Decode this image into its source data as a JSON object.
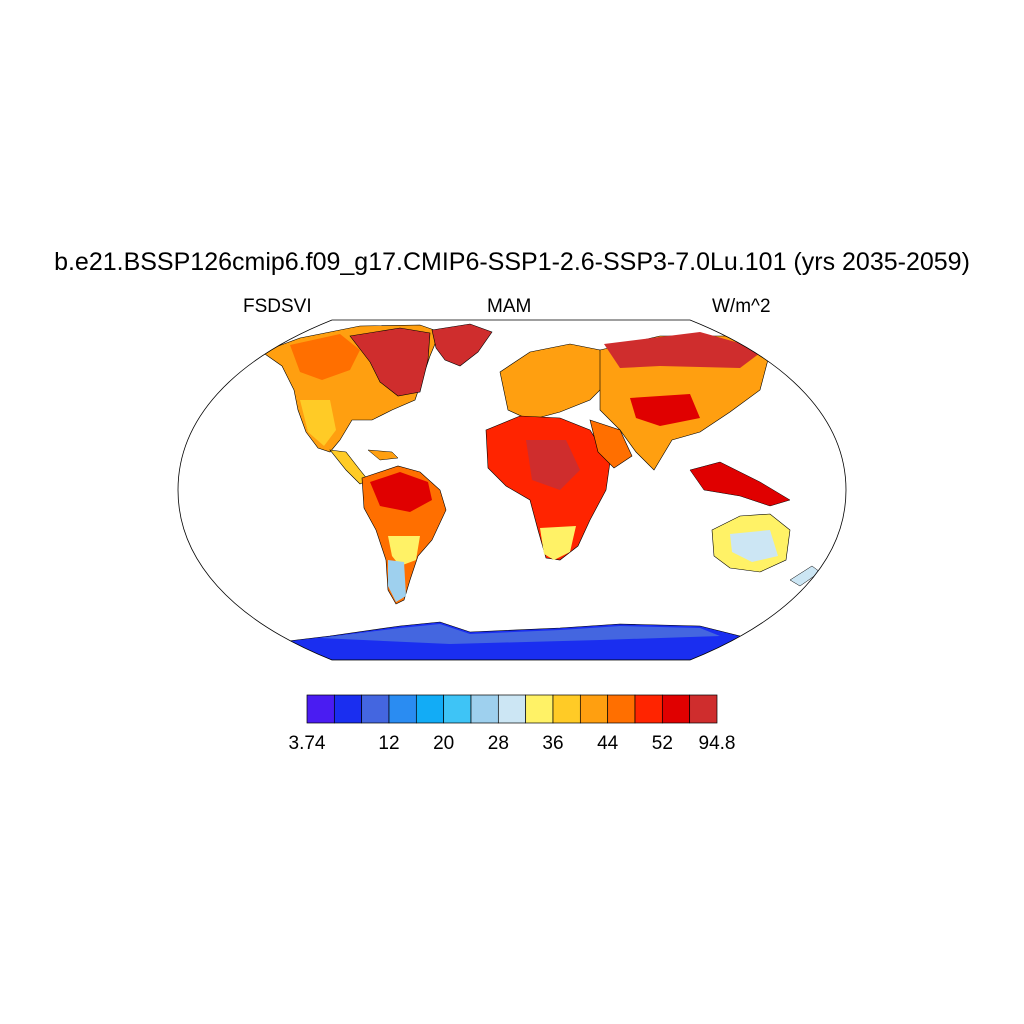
{
  "title": "b.e21.BSSP126cmip6.f09_g17.CMIP6-SSP1-2.6-SSP3-7.0Lu.101 (yrs 2035-2059)",
  "left_string": "FSDSVI",
  "center_string": "MAM",
  "right_string": "W/m^2",
  "projection": "Robinson",
  "colorbar": {
    "colors": [
      "#4a1cf2",
      "#1a2ef0",
      "#4466e0",
      "#2a8cf2",
      "#12acf6",
      "#3ec4f6",
      "#9ed0ee",
      "#cce6f4",
      "#fff266",
      "#ffcb26",
      "#ff9f10",
      "#ff6f00",
      "#ff2400",
      "#e00000",
      "#cf2d2d"
    ],
    "tick_labels": [
      "3.74",
      "12",
      "20",
      "28",
      "36",
      "44",
      "52",
      "94.8"
    ]
  },
  "colors": {
    "land_outline": "#000000",
    "ocean": "#ffffff",
    "antarctica": "#1a2ef0",
    "antarctica_edge": "#2a8cf2"
  },
  "legend": {
    "label_values": [
      "3.74",
      "12",
      "20",
      "28",
      "36",
      "44",
      "52",
      "94.8"
    ]
  }
}
